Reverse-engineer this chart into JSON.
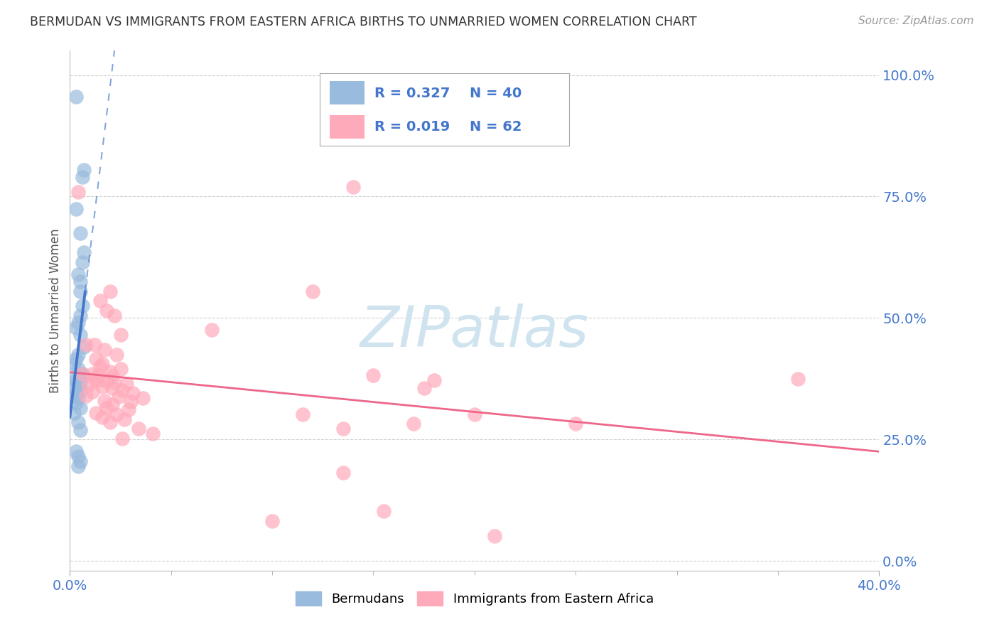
{
  "title": "BERMUDAN VS IMMIGRANTS FROM EASTERN AFRICA BIRTHS TO UNMARRIED WOMEN CORRELATION CHART",
  "source": "Source: ZipAtlas.com",
  "ylabel": "Births to Unmarried Women",
  "xlim": [
    0.0,
    0.4
  ],
  "ylim": [
    -0.02,
    1.05
  ],
  "x_tick_positions": [
    0.0,
    0.4
  ],
  "x_tick_labels": [
    "0.0%",
    "40.0%"
  ],
  "x_minor_ticks": [
    0.05,
    0.1,
    0.15,
    0.2,
    0.25,
    0.3,
    0.35
  ],
  "y_tick_positions": [
    0.0,
    0.25,
    0.5,
    0.75,
    1.0
  ],
  "y_tick_labels": [
    "0.0%",
    "25.0%",
    "50.0%",
    "75.0%",
    "100.0%"
  ],
  "legend_label1": "Bermudans",
  "legend_label2": "Immigrants from Eastern Africa",
  "R1": 0.327,
  "N1": 40,
  "R2": 0.019,
  "N2": 62,
  "blue_color": "#99BBDD",
  "pink_color": "#FFAABB",
  "blue_line_color": "#4477CC",
  "pink_line_color": "#EE6688",
  "text_blue": "#4477CC",
  "title_color": "#333333",
  "source_color": "#999999",
  "watermark_color": "#D0E4F0",
  "grid_color": "#CCCCCC",
  "blue_dots": [
    [
      0.003,
      0.955
    ],
    [
      0.007,
      0.805
    ],
    [
      0.006,
      0.79
    ],
    [
      0.003,
      0.725
    ],
    [
      0.005,
      0.675
    ],
    [
      0.007,
      0.635
    ],
    [
      0.006,
      0.615
    ],
    [
      0.004,
      0.59
    ],
    [
      0.005,
      0.575
    ],
    [
      0.005,
      0.555
    ],
    [
      0.006,
      0.525
    ],
    [
      0.005,
      0.505
    ],
    [
      0.004,
      0.49
    ],
    [
      0.003,
      0.48
    ],
    [
      0.005,
      0.465
    ],
    [
      0.007,
      0.44
    ],
    [
      0.004,
      0.425
    ],
    [
      0.003,
      0.415
    ],
    [
      0.002,
      0.405
    ],
    [
      0.004,
      0.395
    ],
    [
      0.006,
      0.385
    ],
    [
      0.007,
      0.38
    ],
    [
      0.002,
      0.375
    ],
    [
      0.003,
      0.37
    ],
    [
      0.005,
      0.365
    ],
    [
      0.004,
      0.36
    ],
    [
      0.002,
      0.355
    ],
    [
      0.005,
      0.35
    ],
    [
      0.003,
      0.345
    ],
    [
      0.002,
      0.34
    ],
    [
      0.004,
      0.335
    ],
    [
      0.003,
      0.325
    ],
    [
      0.005,
      0.315
    ],
    [
      0.002,
      0.305
    ],
    [
      0.004,
      0.285
    ],
    [
      0.005,
      0.27
    ],
    [
      0.003,
      0.225
    ],
    [
      0.004,
      0.215
    ],
    [
      0.005,
      0.205
    ],
    [
      0.004,
      0.195
    ]
  ],
  "pink_dots": [
    [
      0.004,
      0.76
    ],
    [
      0.14,
      0.77
    ],
    [
      0.02,
      0.555
    ],
    [
      0.015,
      0.535
    ],
    [
      0.018,
      0.515
    ],
    [
      0.022,
      0.505
    ],
    [
      0.12,
      0.555
    ],
    [
      0.025,
      0.465
    ],
    [
      0.07,
      0.475
    ],
    [
      0.008,
      0.445
    ],
    [
      0.012,
      0.445
    ],
    [
      0.017,
      0.435
    ],
    [
      0.023,
      0.425
    ],
    [
      0.013,
      0.415
    ],
    [
      0.016,
      0.405
    ],
    [
      0.015,
      0.4
    ],
    [
      0.025,
      0.395
    ],
    [
      0.02,
      0.39
    ],
    [
      0.006,
      0.385
    ],
    [
      0.011,
      0.385
    ],
    [
      0.014,
      0.382
    ],
    [
      0.021,
      0.38
    ],
    [
      0.012,
      0.375
    ],
    [
      0.014,
      0.372
    ],
    [
      0.018,
      0.37
    ],
    [
      0.022,
      0.368
    ],
    [
      0.028,
      0.365
    ],
    [
      0.009,
      0.362
    ],
    [
      0.016,
      0.358
    ],
    [
      0.021,
      0.355
    ],
    [
      0.026,
      0.352
    ],
    [
      0.011,
      0.348
    ],
    [
      0.031,
      0.345
    ],
    [
      0.008,
      0.34
    ],
    [
      0.024,
      0.338
    ],
    [
      0.036,
      0.335
    ],
    [
      0.017,
      0.33
    ],
    [
      0.03,
      0.328
    ],
    [
      0.021,
      0.322
    ],
    [
      0.018,
      0.315
    ],
    [
      0.029,
      0.312
    ],
    [
      0.013,
      0.305
    ],
    [
      0.023,
      0.302
    ],
    [
      0.016,
      0.295
    ],
    [
      0.027,
      0.292
    ],
    [
      0.02,
      0.285
    ],
    [
      0.034,
      0.272
    ],
    [
      0.041,
      0.262
    ],
    [
      0.026,
      0.252
    ],
    [
      0.15,
      0.382
    ],
    [
      0.115,
      0.302
    ],
    [
      0.17,
      0.282
    ],
    [
      0.18,
      0.372
    ],
    [
      0.135,
      0.272
    ],
    [
      0.175,
      0.355
    ],
    [
      0.2,
      0.302
    ],
    [
      0.36,
      0.375
    ],
    [
      0.135,
      0.182
    ],
    [
      0.155,
      0.102
    ],
    [
      0.21,
      0.052
    ],
    [
      0.1,
      0.082
    ],
    [
      0.25,
      0.282
    ]
  ]
}
